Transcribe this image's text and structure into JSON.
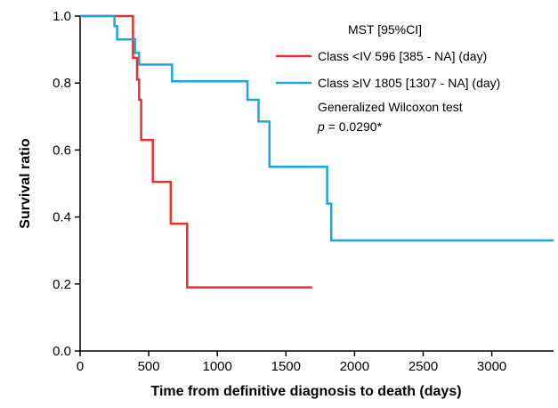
{
  "chart_data": {
    "type": "line",
    "xlabel": "Time from definitive diagnosis to death (days)",
    "ylabel": "Survival ratio",
    "xlim": [
      0,
      3450
    ],
    "ylim": [
      0,
      1.0
    ],
    "xticks": [
      0,
      500,
      1000,
      1500,
      2000,
      2500,
      3000
    ],
    "yticks": [
      0.0,
      0.2,
      0.4,
      0.6,
      0.8,
      1.0
    ],
    "xtick_labels": [
      "0",
      "500",
      "1000",
      "1500",
      "2000",
      "2500",
      "3000"
    ],
    "ytick_labels": [
      "0.0",
      "0.2",
      "0.4",
      "0.6",
      "0.8",
      "1.0"
    ],
    "grid": false,
    "legend_position": "top-right",
    "legend_header": "MST [95%CI]",
    "series": [
      {
        "name": "Class <IV 596 [385 - NA] (day)",
        "color": "#e8312f",
        "x": [
          0,
          385,
          385,
          415,
          415,
          430,
          430,
          445,
          445,
          470,
          470,
          530,
          530,
          660,
          660,
          780,
          780,
          1690
        ],
        "y": [
          1.0,
          1.0,
          0.875,
          0.875,
          0.81,
          0.81,
          0.75,
          0.75,
          0.63,
          0.63,
          0.63,
          0.63,
          0.505,
          0.505,
          0.38,
          0.38,
          0.19,
          0.19
        ]
      },
      {
        "name": "Class ≥IV 1805 [1307 - NA] (day)",
        "color": "#1aa6e0",
        "x": [
          0,
          250,
          250,
          270,
          270,
          300,
          300,
          400,
          400,
          430,
          430,
          670,
          670,
          1220,
          1220,
          1300,
          1300,
          1380,
          1380,
          1800,
          1800,
          1830,
          1830,
          3450
        ],
        "y": [
          1.0,
          1.0,
          0.97,
          0.97,
          0.93,
          0.93,
          0.93,
          0.93,
          0.89,
          0.89,
          0.855,
          0.855,
          0.805,
          0.805,
          0.75,
          0.75,
          0.685,
          0.685,
          0.55,
          0.55,
          0.44,
          0.44,
          0.33,
          0.33
        ]
      }
    ],
    "annotation": {
      "line1": "Generalized Wilcoxon test",
      "p_label": "p",
      "p_rest": " = 0.0290*"
    }
  }
}
